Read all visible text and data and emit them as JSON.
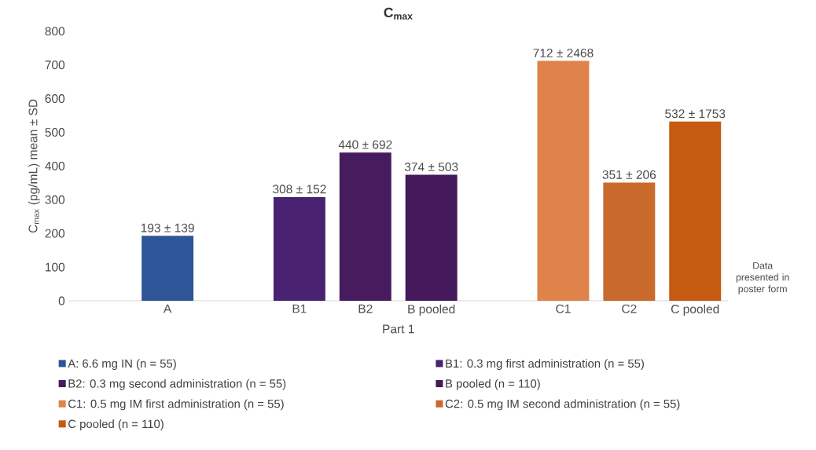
{
  "chart_data": {
    "type": "bar",
    "title": "C$_{max}$",
    "xlabel": "Part 1",
    "ylabel": "C$_{max}$ (pg/mL) mean ± SD",
    "categories": [
      null,
      "A",
      null,
      "B1",
      "B2",
      "B pooled",
      null,
      "C1",
      "C2",
      "C pooled"
    ],
    "series": [
      {
        "name": "A: 6.6 mg IN (n = 55)",
        "color": "#2e5597",
        "values": [
          null,
          193,
          null,
          null,
          null,
          null,
          null,
          null,
          null,
          null
        ],
        "value_labels": [
          null,
          "193 ± 139",
          null,
          null,
          null,
          null,
          null,
          null,
          null,
          null
        ]
      },
      {
        "name": "B1: 0.3 mg first administration (n = 55)",
        "color": "#4a2272",
        "values": [
          null,
          null,
          null,
          308,
          null,
          null,
          null,
          null,
          null,
          null
        ],
        "value_labels": [
          null,
          null,
          null,
          "308 ± 152",
          null,
          null,
          null,
          null,
          null,
          null
        ]
      },
      {
        "name": "B2: 0.3 mg second administration (n = 55)",
        "color": "#461c5e",
        "values": [
          null,
          null,
          null,
          null,
          440,
          null,
          null,
          null,
          null,
          null
        ],
        "value_labels": [
          null,
          null,
          null,
          null,
          "440 ± 692",
          null,
          null,
          null,
          null,
          null
        ]
      },
      {
        "name": "B pooled (n = 110)",
        "color": "#441a5c",
        "values": [
          null,
          null,
          null,
          null,
          null,
          374,
          null,
          null,
          null,
          null
        ],
        "value_labels": [
          null,
          null,
          null,
          null,
          null,
          "374 ± 503",
          null,
          null,
          null,
          null
        ]
      },
      {
        "name": "C1: 0.5 mg IM first administration (n = 55)",
        "color": "#e0834a",
        "values": [
          null,
          null,
          null,
          null,
          null,
          null,
          null,
          712,
          null,
          null
        ],
        "value_labels": [
          null,
          null,
          null,
          null,
          null,
          null,
          null,
          "712 ± 2468",
          null,
          null
        ]
      },
      {
        "name": "C2: 0.5 mg IM second administration (n = 55)",
        "color": "#c96a2c",
        "values": [
          null,
          null,
          null,
          null,
          null,
          null,
          null,
          null,
          351,
          null
        ],
        "value_labels": [
          null,
          null,
          null,
          null,
          null,
          null,
          null,
          null,
          "351 ± 206",
          null
        ]
      },
      {
        "name": "C pooled (n = 110)",
        "color": "#c55a11",
        "values": [
          null,
          null,
          null,
          null,
          null,
          null,
          null,
          null,
          null,
          532
        ],
        "value_labels": [
          null,
          null,
          null,
          null,
          null,
          null,
          null,
          null,
          null,
          "532 ± 1753"
        ]
      }
    ],
    "ylim": [
      0,
      800
    ],
    "yticks": [
      0,
      100,
      200,
      300,
      400,
      500,
      600,
      700,
      800
    ],
    "legend": "bottom",
    "annotations": [
      "Data presented in poster form"
    ]
  }
}
